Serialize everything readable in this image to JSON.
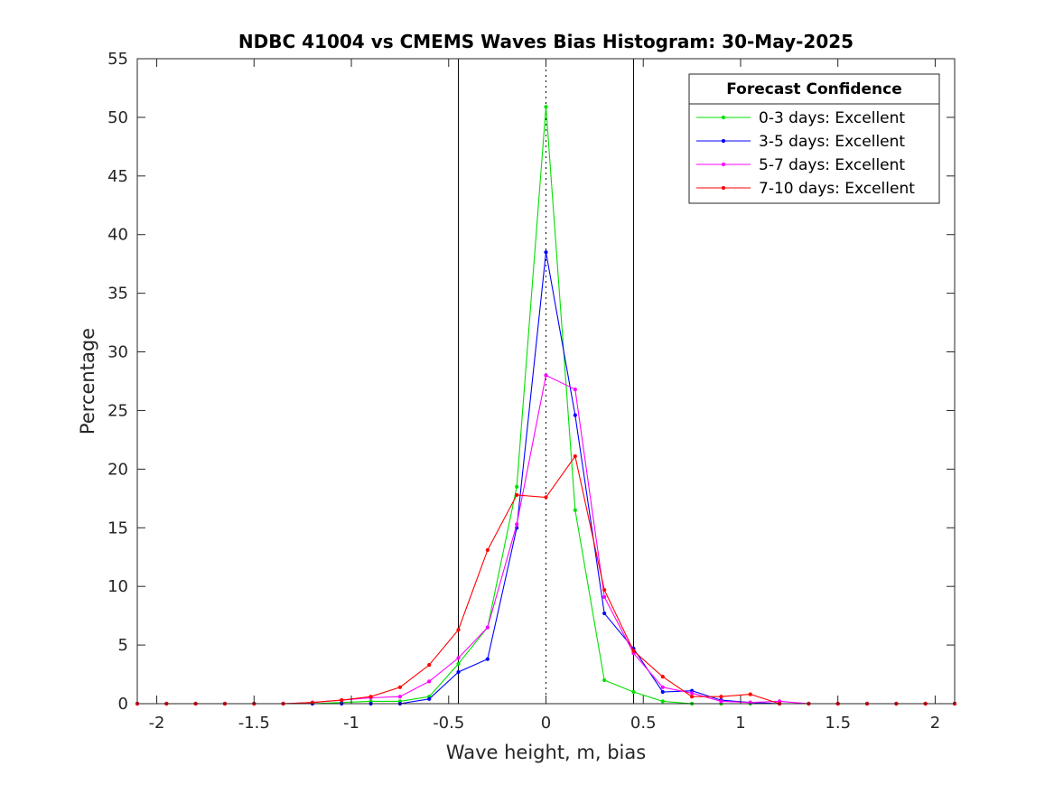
{
  "chart_data": {
    "type": "line",
    "title": "NDBC 41004 vs CMEMS Waves Bias Histogram: 30-May-2025",
    "xlabel": "Wave height, m, bias",
    "ylabel": "Percentage",
    "xlim": [
      -2.1,
      2.1
    ],
    "ylim": [
      0,
      55
    ],
    "xticks": [
      -2,
      -1.5,
      -1,
      -0.5,
      0,
      0.5,
      1,
      1.5,
      2
    ],
    "xtick_labels": [
      "-2",
      "-1.5",
      "-1",
      "-0.5",
      "0",
      "0.5",
      "1",
      "1.5",
      "2"
    ],
    "yticks": [
      0,
      5,
      10,
      15,
      20,
      25,
      30,
      35,
      40,
      45,
      50,
      55
    ],
    "ytick_labels": [
      "0",
      "5",
      "10",
      "15",
      "20",
      "25",
      "30",
      "35",
      "40",
      "45",
      "50",
      "55"
    ],
    "grid": false,
    "vertical_lines": [
      -0.45,
      0.45
    ],
    "zero_line": 0,
    "legend": {
      "title": "Forecast Confidence",
      "placement": "top-right"
    },
    "x": [
      -2.1,
      -1.95,
      -1.8,
      -1.65,
      -1.5,
      -1.35,
      -1.2,
      -1.05,
      -0.9,
      -0.75,
      -0.6,
      -0.45,
      -0.3,
      -0.15,
      0,
      0.15,
      0.3,
      0.45,
      0.6,
      0.75,
      0.9,
      1.05,
      1.2,
      1.35,
      1.5,
      1.65,
      1.8,
      1.95,
      2.1
    ],
    "series": [
      {
        "name": "0-3 days: Excellent",
        "color": "#00e000",
        "values": [
          0,
          0,
          0,
          0,
          0,
          0,
          0,
          0.1,
          0.2,
          0.2,
          0.6,
          3.4,
          6.5,
          18.5,
          50.9,
          16.5,
          2.0,
          1.0,
          0.2,
          0,
          0,
          0,
          0,
          0,
          0,
          0,
          0,
          0,
          0
        ]
      },
      {
        "name": "3-5 days: Excellent",
        "color": "#0000ff",
        "values": [
          0,
          0,
          0,
          0,
          0,
          0,
          0,
          0,
          0,
          0,
          0.4,
          2.7,
          3.8,
          15.0,
          38.5,
          24.6,
          7.7,
          4.7,
          1.0,
          1.1,
          0.3,
          0.1,
          0,
          0,
          0,
          0,
          0,
          0,
          0
        ]
      },
      {
        "name": "5-7 days: Excellent",
        "color": "#ff00ff",
        "values": [
          0,
          0,
          0,
          0,
          0,
          0,
          0.1,
          0.3,
          0.5,
          0.6,
          1.9,
          3.9,
          6.5,
          15.3,
          28.0,
          26.8,
          9.1,
          4.3,
          1.4,
          0.9,
          0.2,
          0.1,
          0.2,
          0,
          0,
          0,
          0,
          0,
          0
        ]
      },
      {
        "name": "7-10 days: Excellent",
        "color": "#ff0000",
        "values": [
          0,
          0,
          0,
          0,
          0,
          0,
          0.1,
          0.3,
          0.6,
          1.4,
          3.3,
          6.3,
          13.1,
          17.8,
          17.6,
          21.1,
          9.7,
          4.5,
          2.3,
          0.6,
          0.6,
          0.8,
          0,
          0,
          0,
          0,
          0,
          0,
          0
        ]
      }
    ]
  }
}
